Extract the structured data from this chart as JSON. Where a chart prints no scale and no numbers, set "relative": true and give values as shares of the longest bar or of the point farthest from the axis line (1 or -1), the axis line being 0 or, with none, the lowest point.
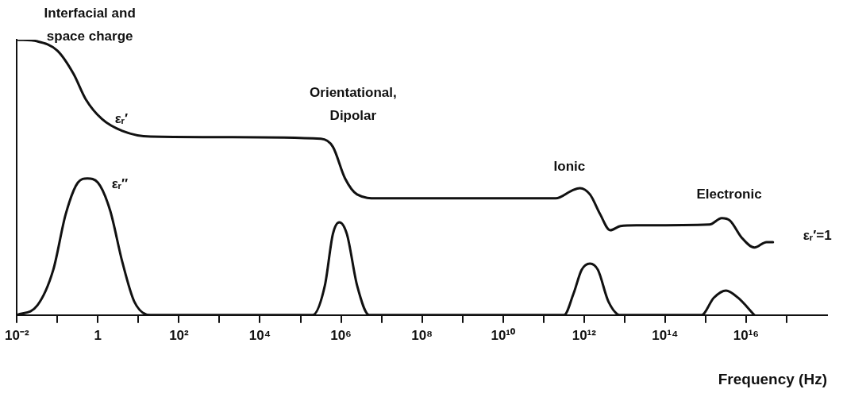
{
  "chart_data": {
    "type": "line",
    "relative": true,
    "log": "x",
    "xlabel": "Frequency (Hz)",
    "marker": "none",
    "line_style": "solid",
    "xlim": [
      0.01,
      1e+18
    ],
    "xticks": [
      {
        "value": 0.01,
        "label": "10⁻²"
      },
      {
        "value": 0.1,
        "label": null
      },
      {
        "value": 1,
        "label": "1"
      },
      {
        "value": 10,
        "label": null
      },
      {
        "value": 100,
        "label": "10²"
      },
      {
        "value": 1000,
        "label": null
      },
      {
        "value": 10000,
        "label": "10⁴"
      },
      {
        "value": 100000,
        "label": null
      },
      {
        "value": 1000000,
        "label": "10⁶"
      },
      {
        "value": 10000000,
        "label": null
      },
      {
        "value": 100000000,
        "label": "10⁸"
      },
      {
        "value": 1000000000,
        "label": null
      },
      {
        "value": 10000000000,
        "label": "10¹⁰"
      },
      {
        "value": 100000000000,
        "label": null
      },
      {
        "value": 1000000000000,
        "label": "10¹²"
      },
      {
        "value": 10000000000000,
        "label": null
      },
      {
        "value": 100000000000000,
        "label": "10¹⁴"
      },
      {
        "value": 1000000000000000,
        "label": null
      },
      {
        "value": 10000000000000000,
        "label": "10¹⁶"
      },
      {
        "value": 100000000000000000,
        "label": null
      }
    ],
    "series": [
      {
        "color": "#111111",
        "x": [
          0.01,
          0.032,
          0.1,
          0.25,
          0.5,
          1.26,
          4,
          20,
          2000,
          320000.0,
          630000.0,
          1260000.0,
          2500000.0,
          7900000.0,
          200000000000.0,
          500000000000.0,
          790000000000.0,
          1400000000000.0,
          2500000000000.0,
          4400000000000.0,
          7900000000000.0,
          20000000000000.0,
          1260000000000000.0,
          2500000000000000.0,
          4000000000000000.0,
          7900000000000000.0,
          1.6e+16,
          3.2e+16,
          4.6e+16
        ],
        "values": [
          1,
          0.994,
          0.96,
          0.876,
          0.784,
          0.712,
          0.669,
          0.648,
          0.646,
          0.64,
          0.611,
          0.496,
          0.438,
          0.424,
          0.424,
          0.452,
          0.461,
          0.438,
          0.366,
          0.308,
          0.323,
          0.326,
          0.329,
          0.352,
          0.343,
          0.28,
          0.245,
          0.265,
          0.265
        ]
      },
      {
        "color": "#111111",
        "x": [
          0.01,
          0.032,
          0.079,
          0.16,
          0.32,
          0.55,
          1,
          2,
          4,
          7.9,
          20,
          200000.0,
          400000.0,
          630000.0,
          910000.0,
          1400000.0,
          2500000.0,
          5000000.0,
          320000000000.0,
          550000000000.0,
          870000000000.0,
          1400000000000.0,
          2200000000000.0,
          4000000000000.0,
          7900000000000.0,
          790000000000000.0,
          1600000000000000.0,
          3200000000000000.0,
          6300000000000000.0,
          1.6e+16
        ],
        "values": [
          0,
          0.035,
          0.164,
          0.366,
          0.481,
          0.496,
          0.481,
          0.38,
          0.193,
          0.049,
          0,
          0,
          0.107,
          0.294,
          0.337,
          0.294,
          0.107,
          0,
          0,
          0.078,
          0.164,
          0.187,
          0.164,
          0.049,
          0,
          0,
          0.063,
          0.089,
          0.063,
          0
        ]
      }
    ],
    "annotations": [
      "Interfacial and space charge",
      "εᵣ′",
      "Orientational, Dipolar",
      "εᵣ″",
      "Ionic",
      "Electronic",
      "εᵣ′=1"
    ]
  }
}
